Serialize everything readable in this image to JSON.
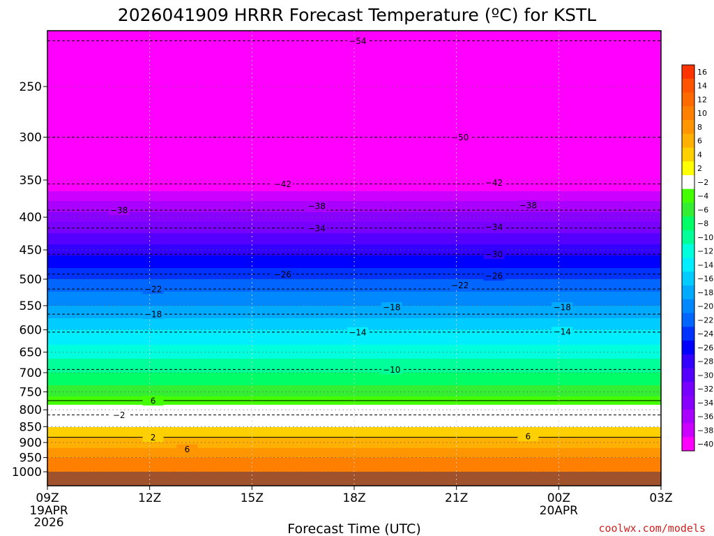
{
  "chart_data": {
    "type": "heatmap",
    "title": "2026041909 HRRR Forecast Temperature (ºC) for KSTL",
    "xlabel": "Forecast Time (UTC)",
    "ylabel": "",
    "credit": "coolwx.com/models",
    "x_ticks": [
      {
        "h": 0,
        "label": "09Z",
        "sub": [
          "19APR",
          "2026"
        ]
      },
      {
        "h": 3,
        "label": "12Z",
        "sub": []
      },
      {
        "h": 6,
        "label": "15Z",
        "sub": []
      },
      {
        "h": 9,
        "label": "18Z",
        "sub": []
      },
      {
        "h": 12,
        "label": "21Z",
        "sub": []
      },
      {
        "h": 15,
        "label": "00Z",
        "sub": [
          "20APR"
        ]
      },
      {
        "h": 18,
        "label": "03Z",
        "sub": []
      }
    ],
    "xlim": [
      0,
      18
    ],
    "ylim_hpa": [
      1000,
      200
    ],
    "y_ticks": [
      250,
      300,
      350,
      400,
      450,
      500,
      550,
      600,
      650,
      700,
      750,
      800,
      850,
      900,
      950,
      1000
    ],
    "colorbar": {
      "levels": [
        16,
        14,
        12,
        10,
        8,
        6,
        4,
        2,
        -2,
        -4,
        -6,
        -8,
        -10,
        -12,
        -14,
        -16,
        -18,
        -20,
        -22,
        -24,
        -26,
        -28,
        -30,
        -32,
        -34,
        -36,
        -38,
        -40
      ],
      "level_labels": [
        "16",
        "14",
        "12",
        "10",
        "8",
        "6",
        "4",
        "2",
        "−2",
        "−4",
        "−6",
        "−8",
        "−10",
        "−12",
        "−14",
        "−16",
        "−18",
        "−20",
        "−22",
        "−24",
        "−26",
        "−28",
        "−30",
        "−32",
        "−34",
        "−36",
        "−38",
        "−40"
      ],
      "colors": [
        "#ff3300",
        "#ff5500",
        "#ff6a00",
        "#ff8000",
        "#ff9600",
        "#ffb000",
        "#ffd000",
        "#ffff00",
        "#ffffff",
        "#44ff00",
        "#33ee33",
        "#00ff66",
        "#00ff99",
        "#00ffdd",
        "#00eeff",
        "#00ccff",
        "#00aaff",
        "#0088ff",
        "#0066ff",
        "#0033ff",
        "#0000ff",
        "#3300ff",
        "#5500ff",
        "#7700ff",
        "#8800ff",
        "#aa00ff",
        "#cc00ff",
        "#ff00ff"
      ]
    },
    "temperature_profile": [
      {
        "hpa": 1000,
        "t": 10
      },
      {
        "hpa": 950,
        "t": 8
      },
      {
        "hpa": 900,
        "t": 5
      },
      {
        "hpa": 850,
        "t": 2
      },
      {
        "hpa": 800,
        "t": -1
      },
      {
        "hpa": 750,
        "t": -5
      },
      {
        "hpa": 700,
        "t": -8
      },
      {
        "hpa": 650,
        "t": -11
      },
      {
        "hpa": 600,
        "t": -14
      },
      {
        "hpa": 550,
        "t": -18
      },
      {
        "hpa": 500,
        "t": -22
      },
      {
        "hpa": 450,
        "t": -27
      },
      {
        "hpa": 400,
        "t": -33
      },
      {
        "hpa": 350,
        "t": -40
      },
      {
        "hpa": 300,
        "t": -48
      },
      {
        "hpa": 250,
        "t": -53
      },
      {
        "hpa": 200,
        "t": -56
      }
    ],
    "contour_labels": [
      {
        "text": "−54",
        "h": 9.1,
        "hpa": 212
      },
      {
        "text": "−50",
        "h": 12.1,
        "hpa": 300
      },
      {
        "text": "−42",
        "h": 6.9,
        "hpa": 355
      },
      {
        "text": "−42",
        "h": 13.1,
        "hpa": 353
      },
      {
        "text": "−38",
        "h": 2.1,
        "hpa": 390
      },
      {
        "text": "−38",
        "h": 7.9,
        "hpa": 384
      },
      {
        "text": "−38",
        "h": 14.1,
        "hpa": 383
      },
      {
        "text": "−34",
        "h": 7.9,
        "hpa": 416
      },
      {
        "text": "−34",
        "h": 13.1,
        "hpa": 414
      },
      {
        "text": "−30",
        "h": 13.1,
        "hpa": 457
      },
      {
        "text": "−26",
        "h": 6.9,
        "hpa": 491
      },
      {
        "text": "−26",
        "h": 13.1,
        "hpa": 494
      },
      {
        "text": "−22",
        "h": 3.1,
        "hpa": 518
      },
      {
        "text": "−22",
        "h": 12.1,
        "hpa": 511
      },
      {
        "text": "−18",
        "h": 3.1,
        "hpa": 567
      },
      {
        "text": "−18",
        "h": 10.1,
        "hpa": 553
      },
      {
        "text": "−18",
        "h": 15.1,
        "hpa": 553
      },
      {
        "text": "−14",
        "h": 9.1,
        "hpa": 605
      },
      {
        "text": "−14",
        "h": 15.1,
        "hpa": 604
      },
      {
        "text": "−10",
        "h": 10.1,
        "hpa": 692
      },
      {
        "text": "6",
        "h": 3.1,
        "hpa": 774
      },
      {
        "text": "−2",
        "h": 2.1,
        "hpa": 815
      },
      {
        "text": "2",
        "h": 3.1,
        "hpa": 883
      },
      {
        "text": "6",
        "h": 14.1,
        "hpa": 880
      },
      {
        "text": "6",
        "h": 4.1,
        "hpa": 922
      }
    ]
  }
}
